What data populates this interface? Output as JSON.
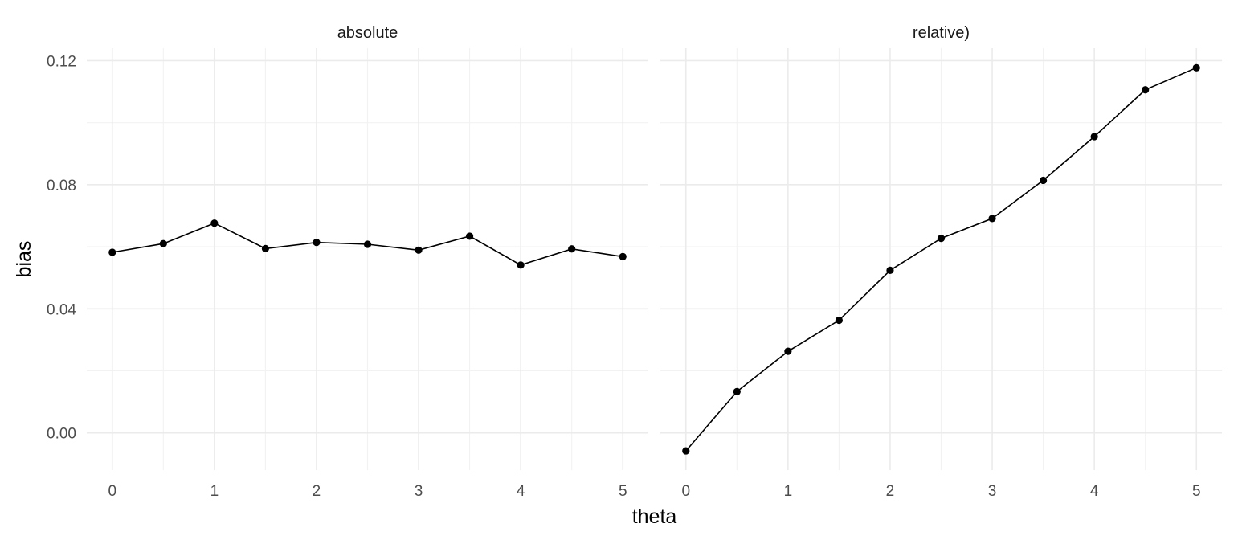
{
  "chart_data": {
    "type": "line",
    "xlabel": "theta",
    "ylabel": "bias",
    "xlim": [
      -0.25,
      5.25
    ],
    "ylim": [
      -0.012,
      0.124
    ],
    "x_ticks": [
      0,
      1,
      2,
      3,
      4,
      5
    ],
    "y_ticks": [
      0.0,
      0.04,
      0.08,
      0.12
    ],
    "y_tick_labels": [
      "0.00",
      "0.04",
      "0.08",
      "0.12"
    ],
    "grid": true,
    "panels": [
      {
        "title": "absolute",
        "x": [
          0,
          0.5,
          1,
          1.5,
          2,
          2.5,
          3,
          3.5,
          4,
          4.5,
          5
        ],
        "values": [
          0.0582,
          0.061,
          0.0676,
          0.0594,
          0.0614,
          0.0608,
          0.0589,
          0.0634,
          0.0541,
          0.0593,
          0.0568
        ]
      },
      {
        "title": "relative)",
        "x": [
          0,
          0.5,
          1,
          1.5,
          2,
          2.5,
          3,
          3.5,
          4,
          4.5,
          5
        ],
        "values": [
          -0.0058,
          0.0133,
          0.0263,
          0.0363,
          0.0524,
          0.0627,
          0.0691,
          0.0814,
          0.0955,
          0.1106,
          0.1177
        ]
      }
    ]
  }
}
